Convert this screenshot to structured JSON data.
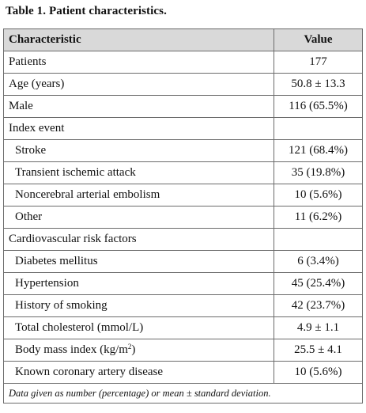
{
  "caption": "Table 1. Patient characteristics.",
  "header": {
    "col1": "Characteristic",
    "col2": "Value"
  },
  "rows": [
    {
      "label": "Patients",
      "value": "177"
    },
    {
      "label": "Age (years)",
      "value": "50.8 ± 13.3"
    },
    {
      "label": "Male",
      "value": "116 (65.5%)"
    },
    {
      "label": "Index event",
      "value": ""
    },
    {
      "label": "Stroke",
      "value": "121 (68.4%)"
    },
    {
      "label": "Transient ischemic attack",
      "value": "35 (19.8%)"
    },
    {
      "label": "Noncerebral arterial embolism",
      "value": "10 (5.6%)"
    },
    {
      "label": "Other",
      "value": "11 (6.2%)"
    },
    {
      "label": "Cardiovascular risk factors",
      "value": ""
    },
    {
      "label": "Diabetes mellitus",
      "value": "6 (3.4%)"
    },
    {
      "label": "Hypertension",
      "value": "45 (25.4%)"
    },
    {
      "label": "History of smoking",
      "value": "42 (23.7%)"
    },
    {
      "label": "Total cholesterol (mmol/L)",
      "value": "4.9 ± 1.1"
    },
    {
      "label": "Body mass index (kg/m",
      "label_sup": "2",
      "label_after": ")",
      "value": "25.5 ± 4.1"
    },
    {
      "label": "Known coronary artery disease",
      "value": "10 (5.6%)"
    }
  ],
  "footnote": "Data given as number (percentage) or mean ± standard deviation."
}
